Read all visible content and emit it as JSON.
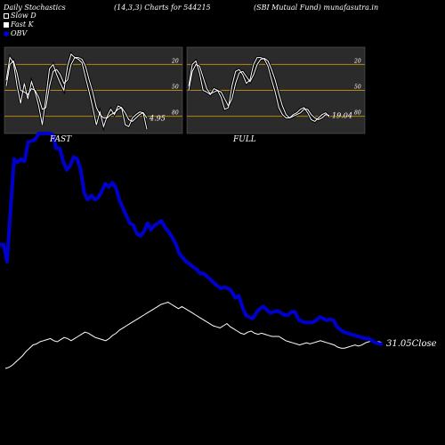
{
  "header": {
    "left": "Daily Stochastics",
    "params": "(14,3,3) Charts for 544215",
    "name": "(SBI Mutual Fund) munafasutra.in"
  },
  "legend": [
    {
      "label": "Slow  D",
      "swatch": "white"
    },
    {
      "label": "Fast K",
      "swatch": "white2"
    },
    {
      "label": "OBV",
      "swatch": "blue"
    }
  ],
  "panels": {
    "fast_label": "FAST",
    "full_label": "FULL"
  },
  "colors": {
    "background": "#000000",
    "panel_bg": "#2b2b2b",
    "level_line": "#b8860b",
    "obv": "#0000cc",
    "price": "#ffffff"
  },
  "chart_data": [
    {
      "type": "line",
      "panel": "FAST",
      "ylim": [
        0,
        100
      ],
      "levels": [
        20,
        50,
        80
      ],
      "tick_labels": [
        "80",
        "50",
        "20"
      ],
      "last_value_label": "4.95",
      "series": [
        {
          "name": "Fast K",
          "values": [
            62,
            88,
            82,
            55,
            35,
            58,
            40,
            60,
            48,
            32,
            10,
            42,
            75,
            80,
            68,
            58,
            50,
            78,
            92,
            88,
            86,
            82,
            65,
            48,
            30,
            10,
            25,
            8,
            20,
            28,
            22,
            32,
            30,
            10,
            8,
            18,
            22,
            25,
            24,
            5
          ]
        },
        {
          "name": "Slow  D",
          "values": [
            55,
            80,
            84,
            70,
            50,
            48,
            45,
            52,
            50,
            42,
            28,
            30,
            55,
            72,
            74,
            68,
            58,
            62,
            80,
            88,
            88,
            86,
            78,
            62,
            48,
            30,
            22,
            18,
            18,
            22,
            24,
            28,
            30,
            24,
            16,
            14,
            18,
            22,
            24,
            18
          ]
        }
      ]
    },
    {
      "type": "line",
      "panel": "FULL",
      "ylim": [
        0,
        100
      ],
      "levels": [
        20,
        50,
        80
      ],
      "tick_labels": [
        "80",
        "50",
        "20"
      ],
      "last_value_label": "19.04",
      "series": [
        {
          "name": "Fast K",
          "values": [
            55,
            80,
            84,
            70,
            50,
            48,
            45,
            52,
            50,
            42,
            28,
            30,
            55,
            72,
            74,
            68,
            58,
            62,
            80,
            88,
            88,
            86,
            78,
            62,
            48,
            30,
            22,
            18,
            18,
            22,
            24,
            28,
            30,
            24,
            16,
            14,
            18,
            22,
            24,
            19
          ]
        },
        {
          "name": "Slow  D",
          "values": [
            50,
            72,
            80,
            78,
            65,
            52,
            46,
            48,
            50,
            48,
            40,
            32,
            40,
            58,
            70,
            72,
            66,
            60,
            68,
            80,
            86,
            87,
            84,
            74,
            62,
            46,
            32,
            22,
            18,
            20,
            22,
            24,
            28,
            28,
            22,
            18,
            16,
            18,
            22,
            21
          ]
        }
      ]
    },
    {
      "type": "line",
      "panel": "OBV and Close",
      "last_value_label": "31.05",
      "last_value_suffix": "Close",
      "series": [
        {
          "name": "OBV",
          "values": [
            118,
            118,
            102,
            150,
            198,
            195,
            198,
            196,
            214,
            215,
            216,
            222,
            222,
            222,
            222,
            221,
            208,
            208,
            196,
            188,
            192,
            200,
            198,
            188,
            166,
            160,
            164,
            160,
            162,
            168,
            175,
            172,
            176,
            171,
            160,
            152,
            145,
            138,
            136,
            128,
            126,
            130,
            138,
            132,
            136,
            138,
            140,
            134,
            130,
            125,
            119,
            110,
            106,
            102,
            100,
            97,
            95,
            91,
            91,
            88,
            85,
            82,
            79,
            77,
            78,
            77,
            74,
            68,
            70,
            60,
            52,
            50,
            49,
            54,
            58,
            60,
            57,
            54,
            55,
            56,
            54,
            52,
            52,
            55,
            55,
            48,
            46,
            45,
            45,
            45,
            47,
            50,
            49,
            47,
            48,
            47,
            41,
            38,
            36,
            35,
            34,
            33,
            32,
            31,
            30,
            30,
            28,
            26,
            25,
            25
          ]
        },
        {
          "name": "Close",
          "values": [
            2,
            3,
            5,
            8,
            11,
            14,
            18,
            21,
            24,
            25,
            27,
            28,
            29,
            30,
            28,
            27,
            29,
            31,
            30,
            28,
            30,
            32,
            34,
            36,
            35,
            33,
            31,
            30,
            29,
            28,
            30,
            33,
            35,
            38,
            40,
            42,
            44,
            46,
            48,
            50,
            52,
            54,
            56,
            58,
            60,
            62,
            63,
            64,
            62,
            60,
            58,
            60,
            58,
            56,
            54,
            52,
            50,
            48,
            46,
            44,
            42,
            41,
            40,
            42,
            44,
            41,
            39,
            37,
            35,
            34,
            36,
            37,
            35,
            34,
            35,
            34,
            33,
            32,
            32,
            32,
            30,
            28,
            27,
            26,
            25,
            24,
            25,
            26,
            25,
            26,
            27,
            28,
            27,
            26,
            25,
            24,
            22,
            21,
            21,
            22,
            23,
            24,
            23,
            24,
            26,
            27,
            28,
            27,
            27,
            26
          ]
        }
      ]
    }
  ]
}
